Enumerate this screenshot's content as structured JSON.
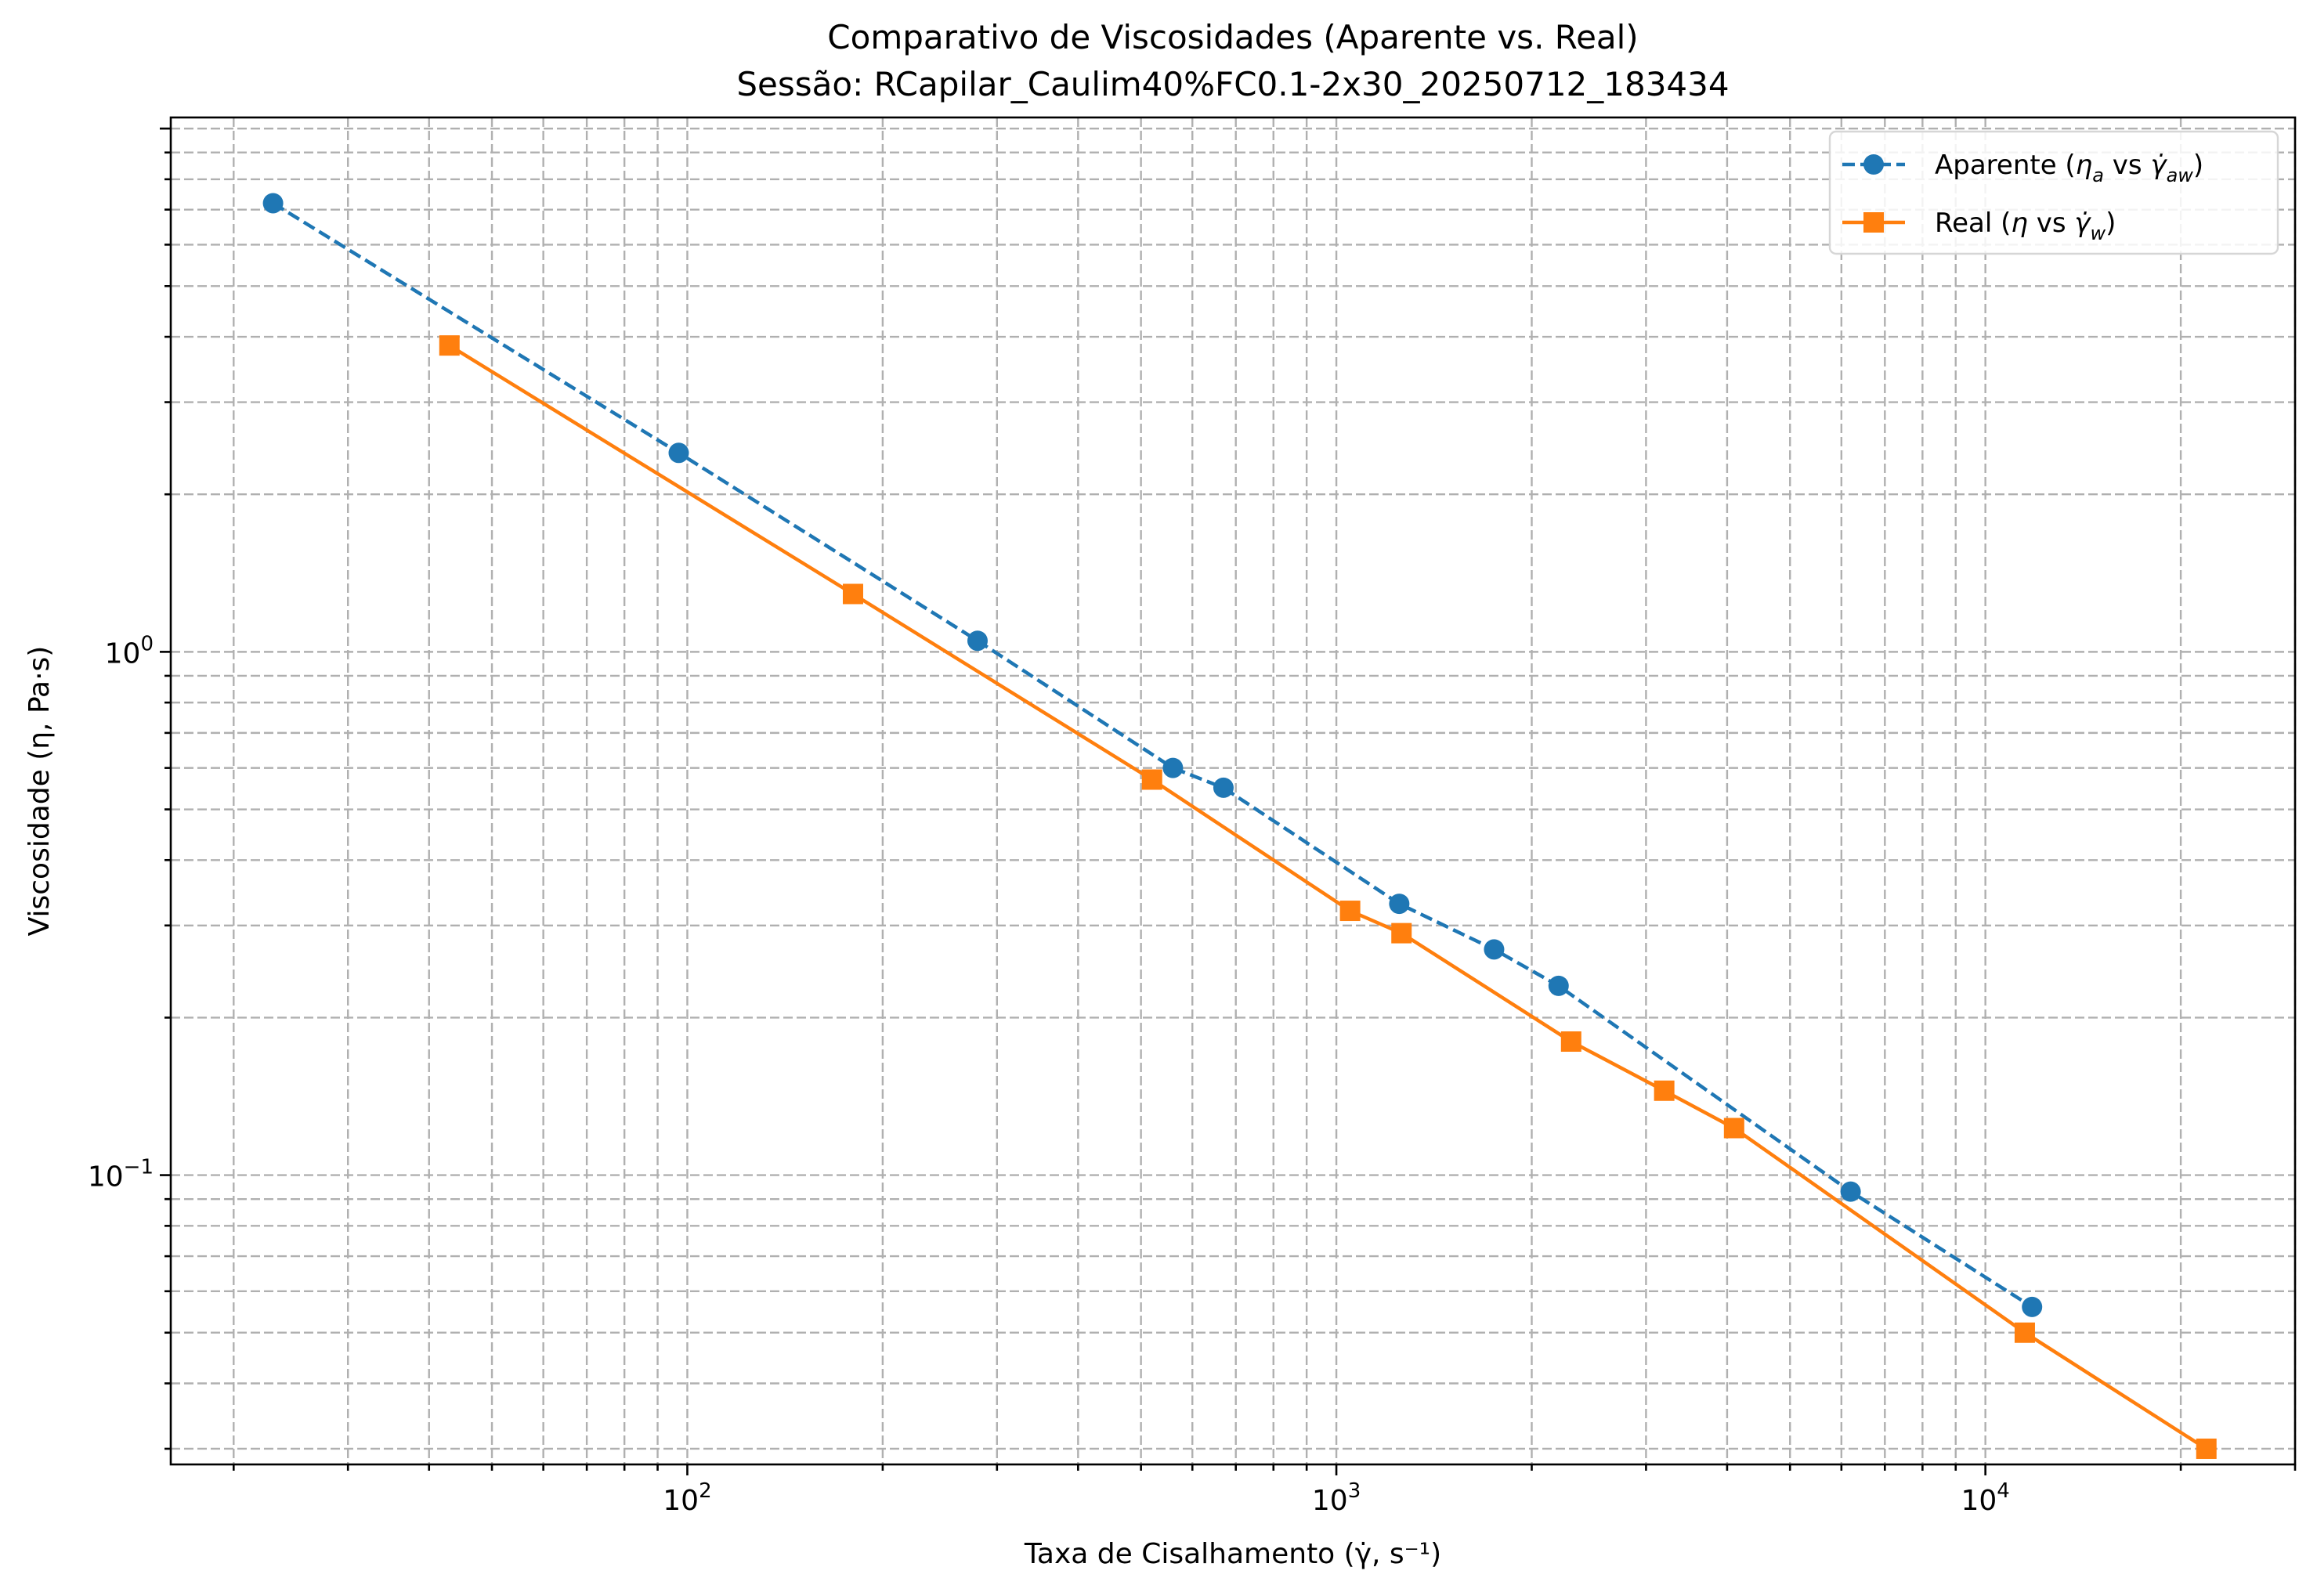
{
  "chart_data": {
    "type": "line",
    "title": "Comparativo de Viscosidades (Aparente vs. Real)",
    "subtitle": "Sessão: RCapilar_Caulim40%FC0.1-2x30_20250712_183434",
    "xlabel": "Taxa de Cisalhamento (γ̇, s⁻¹)",
    "ylabel": "Viscosidade (η, Pa·s)",
    "xscale": "log",
    "yscale": "log",
    "xlim": [
      16,
      30000
    ],
    "ylim": [
      0.028,
      10.5
    ],
    "x_ticks": [
      {
        "value": 100,
        "base": "10",
        "exp": "2"
      },
      {
        "value": 1000,
        "base": "10",
        "exp": "3"
      },
      {
        "value": 10000,
        "base": "10",
        "exp": "4"
      }
    ],
    "y_ticks": [
      {
        "value": 0.1,
        "base": "10",
        "exp": "−1"
      },
      {
        "value": 1,
        "base": "10",
        "exp": "0"
      }
    ],
    "grid": true,
    "legend_position": "top-right",
    "series": [
      {
        "name": "Aparente (ηa vs γ̇aw)",
        "legend_main": "Aparente (",
        "legend_sym": "η",
        "legend_sub": "a",
        "legend_mid": " vs ",
        "legend_sym2": "γ̇",
        "legend_sub2": "aw",
        "legend_end": ")",
        "color": "#1f77b4",
        "linestyle": "dashed",
        "marker": "circle",
        "x": [
          23,
          97,
          280,
          560,
          670,
          1250,
          1750,
          2200,
          6200,
          11800
        ],
        "y": [
          7.2,
          2.4,
          1.05,
          0.6,
          0.55,
          0.33,
          0.27,
          0.23,
          0.093,
          0.056
        ]
      },
      {
        "name": "Real (η vs γ̇w)",
        "legend_main": "Real (",
        "legend_sym": "η",
        "legend_sub": "",
        "legend_mid": " vs ",
        "legend_sym2": "γ̇",
        "legend_sub2": "w",
        "legend_end": ")",
        "color": "#ff7f0e",
        "linestyle": "solid",
        "marker": "square",
        "x": [
          43,
          180,
          520,
          1050,
          1260,
          2300,
          3200,
          4100,
          11500,
          21900
        ],
        "y": [
          3.85,
          1.29,
          0.57,
          0.32,
          0.29,
          0.18,
          0.145,
          0.123,
          0.05,
          0.03
        ]
      }
    ]
  }
}
